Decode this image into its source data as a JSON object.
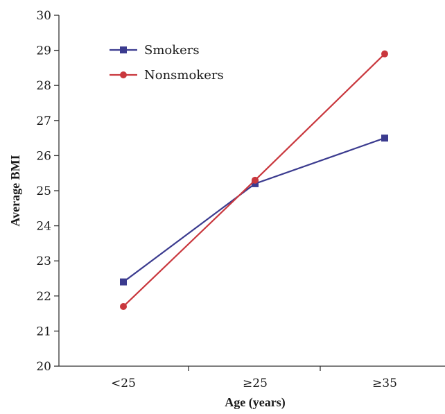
{
  "chart_data": {
    "type": "line",
    "title": "",
    "xlabel": "Age (years)",
    "ylabel": "Average BMI",
    "categories": [
      "<25",
      "≥25",
      "≥35"
    ],
    "ylim": [
      20,
      30
    ],
    "yticks": [
      20,
      21,
      22,
      23,
      24,
      25,
      26,
      27,
      28,
      29,
      30
    ],
    "grid": false,
    "legend_position": "top-left",
    "series": [
      {
        "name": "Smokers",
        "values": [
          22.4,
          25.2,
          26.5
        ],
        "color": "#3b3b8f",
        "marker": "square"
      },
      {
        "name": "Nonsmokers",
        "values": [
          21.7,
          25.3,
          28.9
        ],
        "color": "#c9373d",
        "marker": "circle"
      }
    ]
  }
}
